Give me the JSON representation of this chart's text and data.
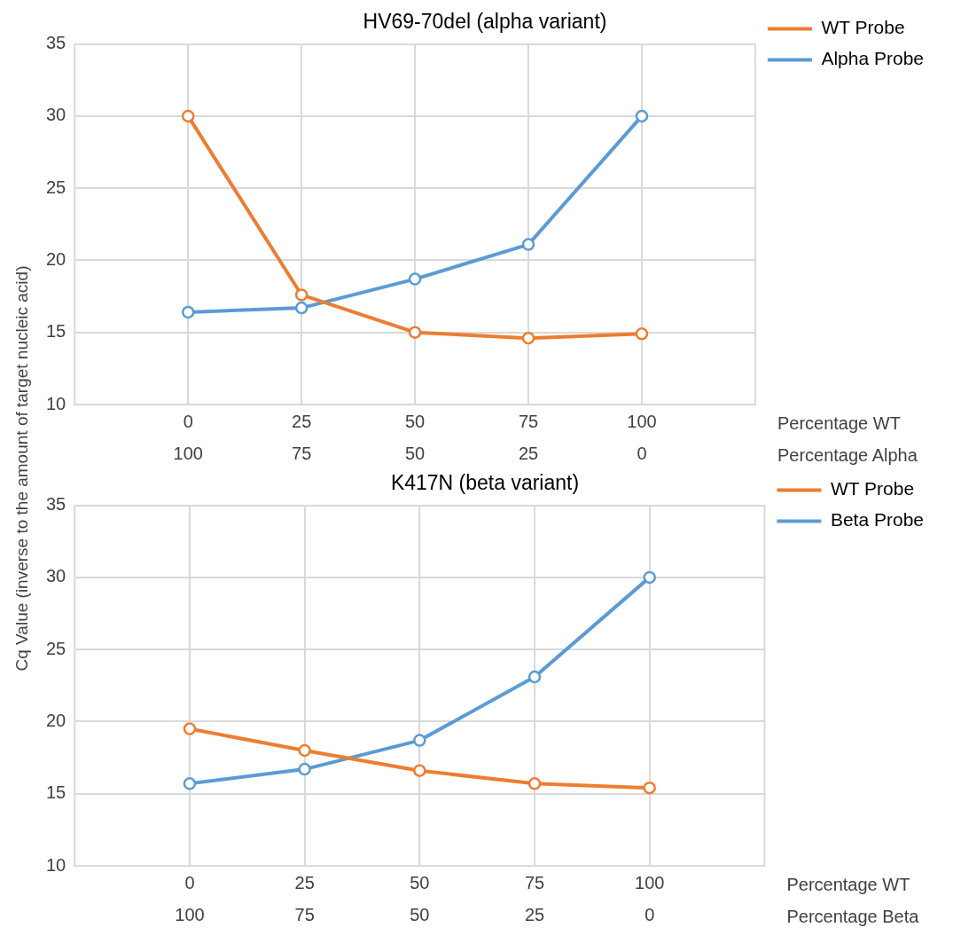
{
  "chart_data": [
    {
      "type": "line",
      "title": "HV69-70del (alpha variant)",
      "ylabel": "Cq Value (inverse to the amount of target nucleic acid)",
      "xlabel": "Percentage WT",
      "x2label": "Percentage Alpha",
      "x": [
        0,
        25,
        50,
        75,
        100
      ],
      "xlim": [
        -25,
        125
      ],
      "xticks": [
        0,
        25,
        50,
        75,
        100
      ],
      "x2lim": [
        125,
        -25
      ],
      "x2ticks": [
        100,
        75,
        50,
        25,
        0
      ],
      "ylim": [
        10,
        35
      ],
      "yticks": [
        10,
        15,
        20,
        25,
        30,
        35
      ],
      "grid": true,
      "legend": "top right",
      "marker": "circle",
      "line_style": "solid",
      "series": [
        {
          "name": "WT Probe",
          "color": "#ed7d31",
          "values": [
            30,
            17.6,
            15.0,
            14.6,
            14.9
          ]
        },
        {
          "name": "Alpha Probe",
          "color": "#5b9bd5",
          "values": [
            16.4,
            16.7,
            18.7,
            21.1,
            30
          ]
        }
      ]
    },
    {
      "type": "line",
      "title": "K417N (beta variant)",
      "xlabel": "Percentage WT",
      "x2label": "Percentage Beta",
      "x": [
        0,
        25,
        50,
        75,
        100
      ],
      "xlim": [
        -25,
        125
      ],
      "xticks": [
        0,
        25,
        50,
        75,
        100
      ],
      "x2lim": [
        125,
        -25
      ],
      "x2ticks": [
        100,
        75,
        50,
        25,
        0
      ],
      "ylim": [
        10,
        35
      ],
      "yticks": [
        10,
        15,
        20,
        25,
        30,
        35
      ],
      "grid": true,
      "legend": "top right",
      "marker": "circle",
      "line_style": "solid",
      "series": [
        {
          "name": "WT Probe",
          "color": "#ed7d31",
          "values": [
            19.5,
            18.0,
            16.6,
            15.7,
            15.4
          ]
        },
        {
          "name": "Beta Probe",
          "color": "#5b9bd5",
          "values": [
            15.7,
            16.7,
            18.7,
            23.1,
            30.0
          ]
        }
      ]
    }
  ]
}
